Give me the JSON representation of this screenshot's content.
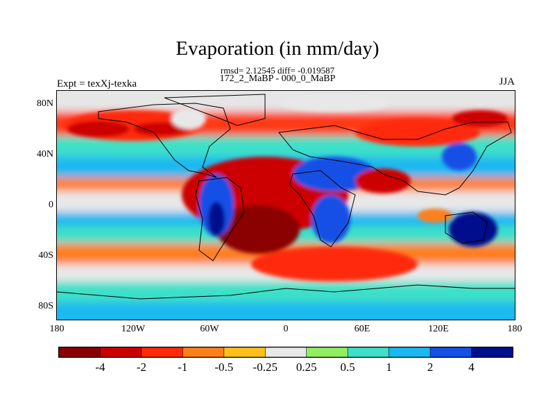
{
  "title": "Evaporation (in mm/day)",
  "stats": "rmsd= 2.12545 diff= -0.019587",
  "subtitle": "172_2_MaBP - 000_0_MaBP",
  "left_label": "Expt = texXj-texka",
  "right_label": "JJA",
  "lat_ticks": [
    "80N",
    "40N",
    "0",
    "40S",
    "80S"
  ],
  "lon_ticks": [
    "180",
    "120W",
    "60W",
    "0",
    "60E",
    "120E",
    "180"
  ],
  "colorbar": {
    "colors": [
      "#8b0000",
      "#cc0000",
      "#ff2a0a",
      "#ff7f1a",
      "#ffbf1a",
      "#e8e8e8",
      "#90ee60",
      "#3ee0c8",
      "#1ab8f0",
      "#1450e6",
      "#000f8c"
    ],
    "labels": [
      "-4",
      "-2",
      "-1",
      "-0.5",
      "-0.25",
      "0.25",
      "0.5",
      "1",
      "2",
      "4"
    ]
  },
  "map": {
    "lon_range": [
      -180,
      180
    ],
    "lat_range": [
      -90,
      90
    ]
  }
}
